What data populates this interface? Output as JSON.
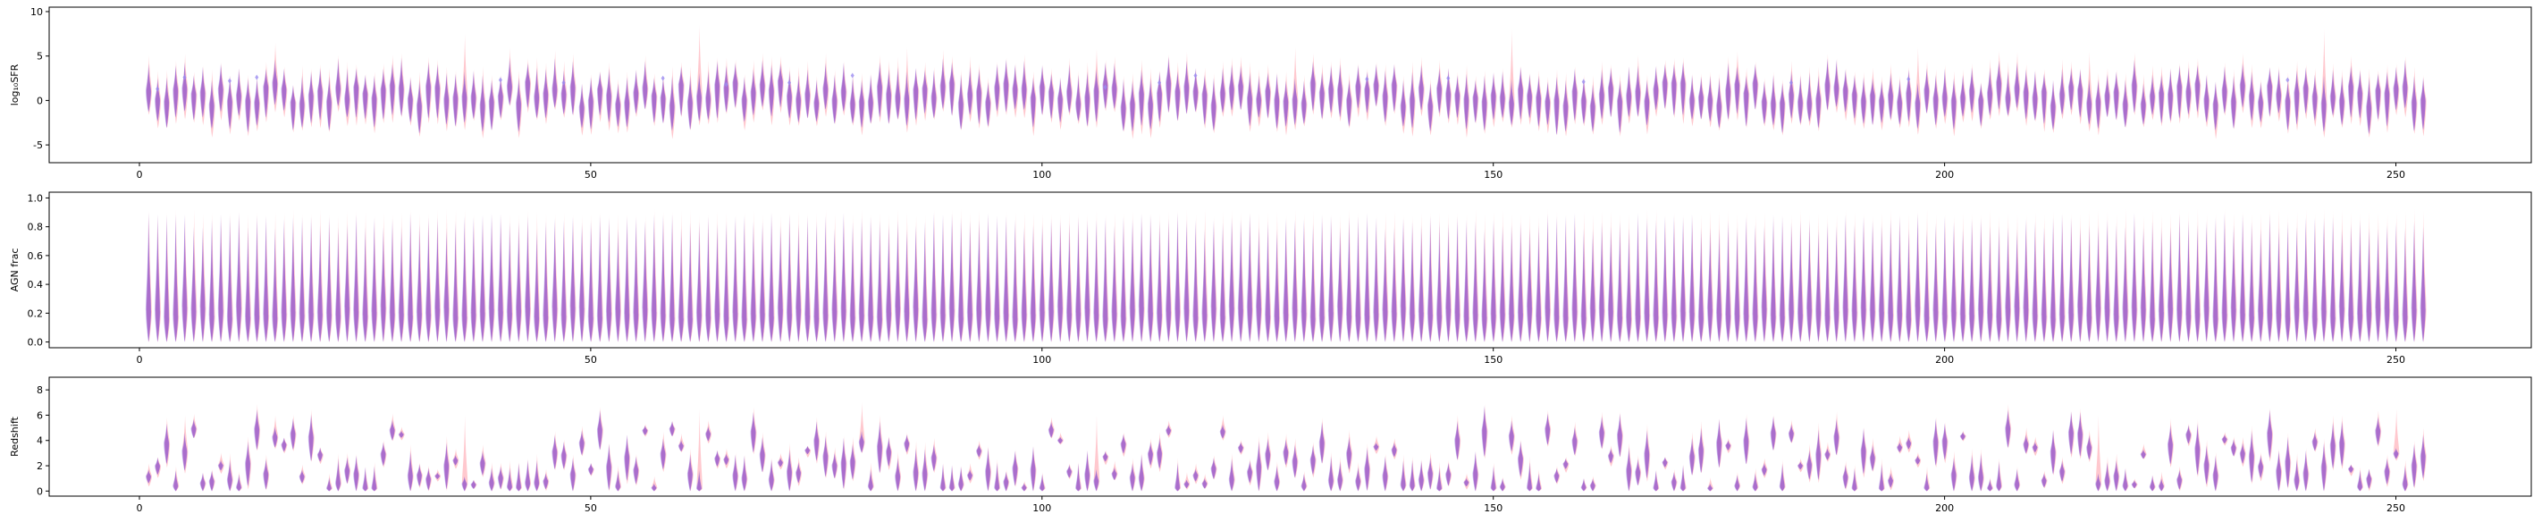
{
  "colors": {
    "series_a": "#ff9aa6",
    "series_b": "#9b8cf0",
    "overlap": "#a463c8",
    "axes": "#000000"
  },
  "chart_data": [
    {
      "type": "violin",
      "ylabel": "log₁₀SFR",
      "xlim": [
        -10,
        265
      ],
      "ylim": [
        -7,
        10.5
      ],
      "x_ticks": [
        0,
        50,
        100,
        150,
        200,
        250
      ],
      "y_ticks": [
        -5,
        0,
        5,
        10
      ],
      "n_positions": 253,
      "median_range": [
        -0.5,
        1.8
      ],
      "spread": 2.2,
      "tall_outliers": [
        {
          "x": 15,
          "max": 6.5
        },
        {
          "x": 36,
          "max": 7.5
        },
        {
          "x": 62,
          "max": 8.5
        },
        {
          "x": 85,
          "max": 6.0
        },
        {
          "x": 106,
          "max": 5.8
        },
        {
          "x": 128,
          "max": 6.0
        },
        {
          "x": 152,
          "max": 8.0
        },
        {
          "x": 177,
          "max": 5.5
        },
        {
          "x": 197,
          "max": 6.0
        },
        {
          "x": 216,
          "max": 5.5
        },
        {
          "x": 242,
          "max": 8.0
        },
        {
          "x": 251,
          "max": 5.0
        }
      ],
      "marker_points": [
        {
          "x": 2,
          "y": 1.3
        },
        {
          "x": 5,
          "y": 2.6
        },
        {
          "x": 10,
          "y": 2.2
        },
        {
          "x": 13,
          "y": 2.6
        },
        {
          "x": 40,
          "y": 2.3
        },
        {
          "x": 47,
          "y": 2.0
        },
        {
          "x": 58,
          "y": 2.5
        },
        {
          "x": 65,
          "y": 1.8
        },
        {
          "x": 72,
          "y": 2.0
        },
        {
          "x": 79,
          "y": 2.8
        },
        {
          "x": 107,
          "y": 1.5
        },
        {
          "x": 113,
          "y": 2.0
        },
        {
          "x": 117,
          "y": 2.8
        },
        {
          "x": 136,
          "y": 2.4
        },
        {
          "x": 145,
          "y": 2.5
        },
        {
          "x": 160,
          "y": 2.1
        },
        {
          "x": 183,
          "y": 2.0
        },
        {
          "x": 196,
          "y": 2.4
        },
        {
          "x": 238,
          "y": 2.3
        }
      ]
    },
    {
      "type": "violin",
      "ylabel": "AGN frac",
      "xlim": [
        -10,
        265
      ],
      "ylim": [
        -0.04,
        1.04
      ],
      "x_ticks": [
        0,
        50,
        100,
        150,
        200,
        250
      ],
      "y_ticks": [
        0.0,
        0.2,
        0.4,
        0.6,
        0.8,
        1.0
      ],
      "n_positions": 253,
      "min": 0.0,
      "max": 0.9,
      "peak": 0.2
    },
    {
      "type": "violin",
      "ylabel": "Redshift",
      "xlim": [
        -10,
        265
      ],
      "ylim": [
        -0.4,
        9.0
      ],
      "x_ticks": [
        0,
        50,
        100,
        150,
        200,
        250
      ],
      "y_ticks": [
        0,
        2,
        4,
        6,
        8
      ],
      "n_positions": 253,
      "value_range": [
        0.2,
        5.0
      ],
      "tall_outliers": [
        {
          "x": 5,
          "max": 6.0
        },
        {
          "x": 15,
          "max": 6.0
        },
        {
          "x": 36,
          "max": 6.0
        },
        {
          "x": 62,
          "max": 6.5
        },
        {
          "x": 80,
          "max": 7.0
        },
        {
          "x": 106,
          "max": 6.0
        },
        {
          "x": 120,
          "max": 6.0
        },
        {
          "x": 152,
          "max": 6.0
        },
        {
          "x": 217,
          "max": 6.0
        },
        {
          "x": 250,
          "max": 6.5
        }
      ]
    }
  ]
}
